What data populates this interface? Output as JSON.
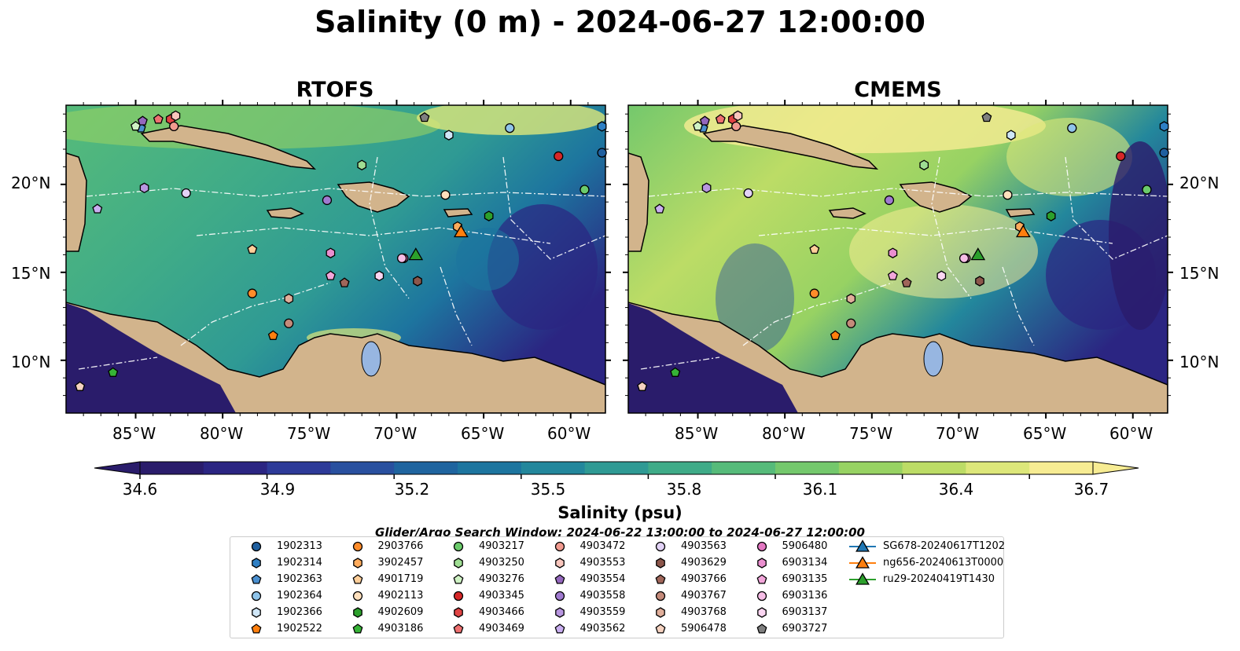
{
  "title": "Salinity (0 m) - 2024-06-27 12:00:00",
  "panels": [
    {
      "title": "RTOFS"
    },
    {
      "title": "CMEMS"
    }
  ],
  "axes": {
    "lon_ticks": [
      "85°W",
      "80°W",
      "75°W",
      "70°W",
      "65°W",
      "60°W"
    ],
    "lat_ticks": [
      "20°N",
      "15°N",
      "10°N"
    ]
  },
  "colorbar": {
    "label": "Salinity (psu)",
    "ticks": [
      "34.6",
      "34.9",
      "35.2",
      "35.5",
      "35.8",
      "36.1",
      "36.4",
      "36.7"
    ],
    "colors": [
      "#2a1c6b",
      "#2b2582",
      "#2d3a98",
      "#29509f",
      "#1f649f",
      "#1d759f",
      "#23879c",
      "#2f9a94",
      "#3fab88",
      "#56bb7a",
      "#74c86c",
      "#97d263",
      "#bcdc66",
      "#dde77a",
      "#f7ec93"
    ]
  },
  "window_note": "Glider/Argo Search Window: 2024-06-22 13:00:00 to 2024-06-27 12:00:00",
  "legend": [
    {
      "label": "1902313",
      "marker": "circle",
      "color": "#1f5f9f"
    },
    {
      "label": "1902314",
      "marker": "hexagon",
      "color": "#2e7fc4"
    },
    {
      "label": "1902363",
      "marker": "pentagon",
      "color": "#4a8fcf"
    },
    {
      "label": "1902364",
      "marker": "circle",
      "color": "#8fc4ea"
    },
    {
      "label": "1902366",
      "marker": "hexagon",
      "color": "#cfe6f7"
    },
    {
      "label": "1902522",
      "marker": "pentagon",
      "color": "#ff7f0e"
    },
    {
      "label": "2903766",
      "marker": "circle",
      "color": "#ff8c2a"
    },
    {
      "label": "3902457",
      "marker": "hexagon",
      "color": "#ffab5c"
    },
    {
      "label": "4901719",
      "marker": "pentagon",
      "color": "#ffcf9a"
    },
    {
      "label": "4902113",
      "marker": "circle",
      "color": "#ffe0bd"
    },
    {
      "label": "4902609",
      "marker": "hexagon",
      "color": "#2ca02c"
    },
    {
      "label": "4903186",
      "marker": "pentagon",
      "color": "#36b336"
    },
    {
      "label": "4903217",
      "marker": "circle",
      "color": "#6bcb6b"
    },
    {
      "label": "4903250",
      "marker": "hexagon",
      "color": "#9fde93"
    },
    {
      "label": "4903276",
      "marker": "pentagon",
      "color": "#cff2c4"
    },
    {
      "label": "4903345",
      "marker": "circle",
      "color": "#d62728"
    },
    {
      "label": "4903466",
      "marker": "hexagon",
      "color": "#e04444"
    },
    {
      "label": "4903469",
      "marker": "pentagon",
      "color": "#ee7070"
    },
    {
      "label": "4903472",
      "marker": "circle",
      "color": "#f19a8f"
    },
    {
      "label": "4903553",
      "marker": "hexagon",
      "color": "#f9c6bd"
    },
    {
      "label": "4903554",
      "marker": "pentagon",
      "color": "#9467bd"
    },
    {
      "label": "4903558",
      "marker": "circle",
      "color": "#a07ad0"
    },
    {
      "label": "4903559",
      "marker": "hexagon",
      "color": "#b896e0"
    },
    {
      "label": "4903562",
      "marker": "pentagon",
      "color": "#c9aef0"
    },
    {
      "label": "4903563",
      "marker": "circle",
      "color": "#e2d2f6"
    },
    {
      "label": "4903629",
      "marker": "hexagon",
      "color": "#8c564b"
    },
    {
      "label": "4903766",
      "marker": "pentagon",
      "color": "#a0665a"
    },
    {
      "label": "4903767",
      "marker": "circle",
      "color": "#c48a7a"
    },
    {
      "label": "4903768",
      "marker": "hexagon",
      "color": "#e0ae9a"
    },
    {
      "label": "5906478",
      "marker": "pentagon",
      "color": "#f5d2c0"
    },
    {
      "label": "5906480",
      "marker": "circle",
      "color": "#e377c2"
    },
    {
      "label": "6903134",
      "marker": "hexagon",
      "color": "#ea8fcf"
    },
    {
      "label": "6903135",
      "marker": "pentagon",
      "color": "#f2a6da"
    },
    {
      "label": "6903136",
      "marker": "circle",
      "color": "#f6bde6"
    },
    {
      "label": "6903137",
      "marker": "hexagon",
      "color": "#fbd6f2"
    },
    {
      "label": "6903727",
      "marker": "pentagon",
      "color": "#7f7f7f"
    },
    {
      "label": "SG678-20240617T1202",
      "marker": "triangle-line",
      "color": "#1f77b4"
    },
    {
      "label": "ng656-20240613T0000",
      "marker": "triangle-line",
      "color": "#ff7f0e"
    },
    {
      "label": "ru29-20240419T1430",
      "marker": "triangle-line",
      "color": "#2ca02c"
    }
  ],
  "colors": {
    "land": "#d2b48c",
    "coast": "#000000",
    "eez_lines": "#ffffff",
    "lake": "#97b6e1"
  }
}
